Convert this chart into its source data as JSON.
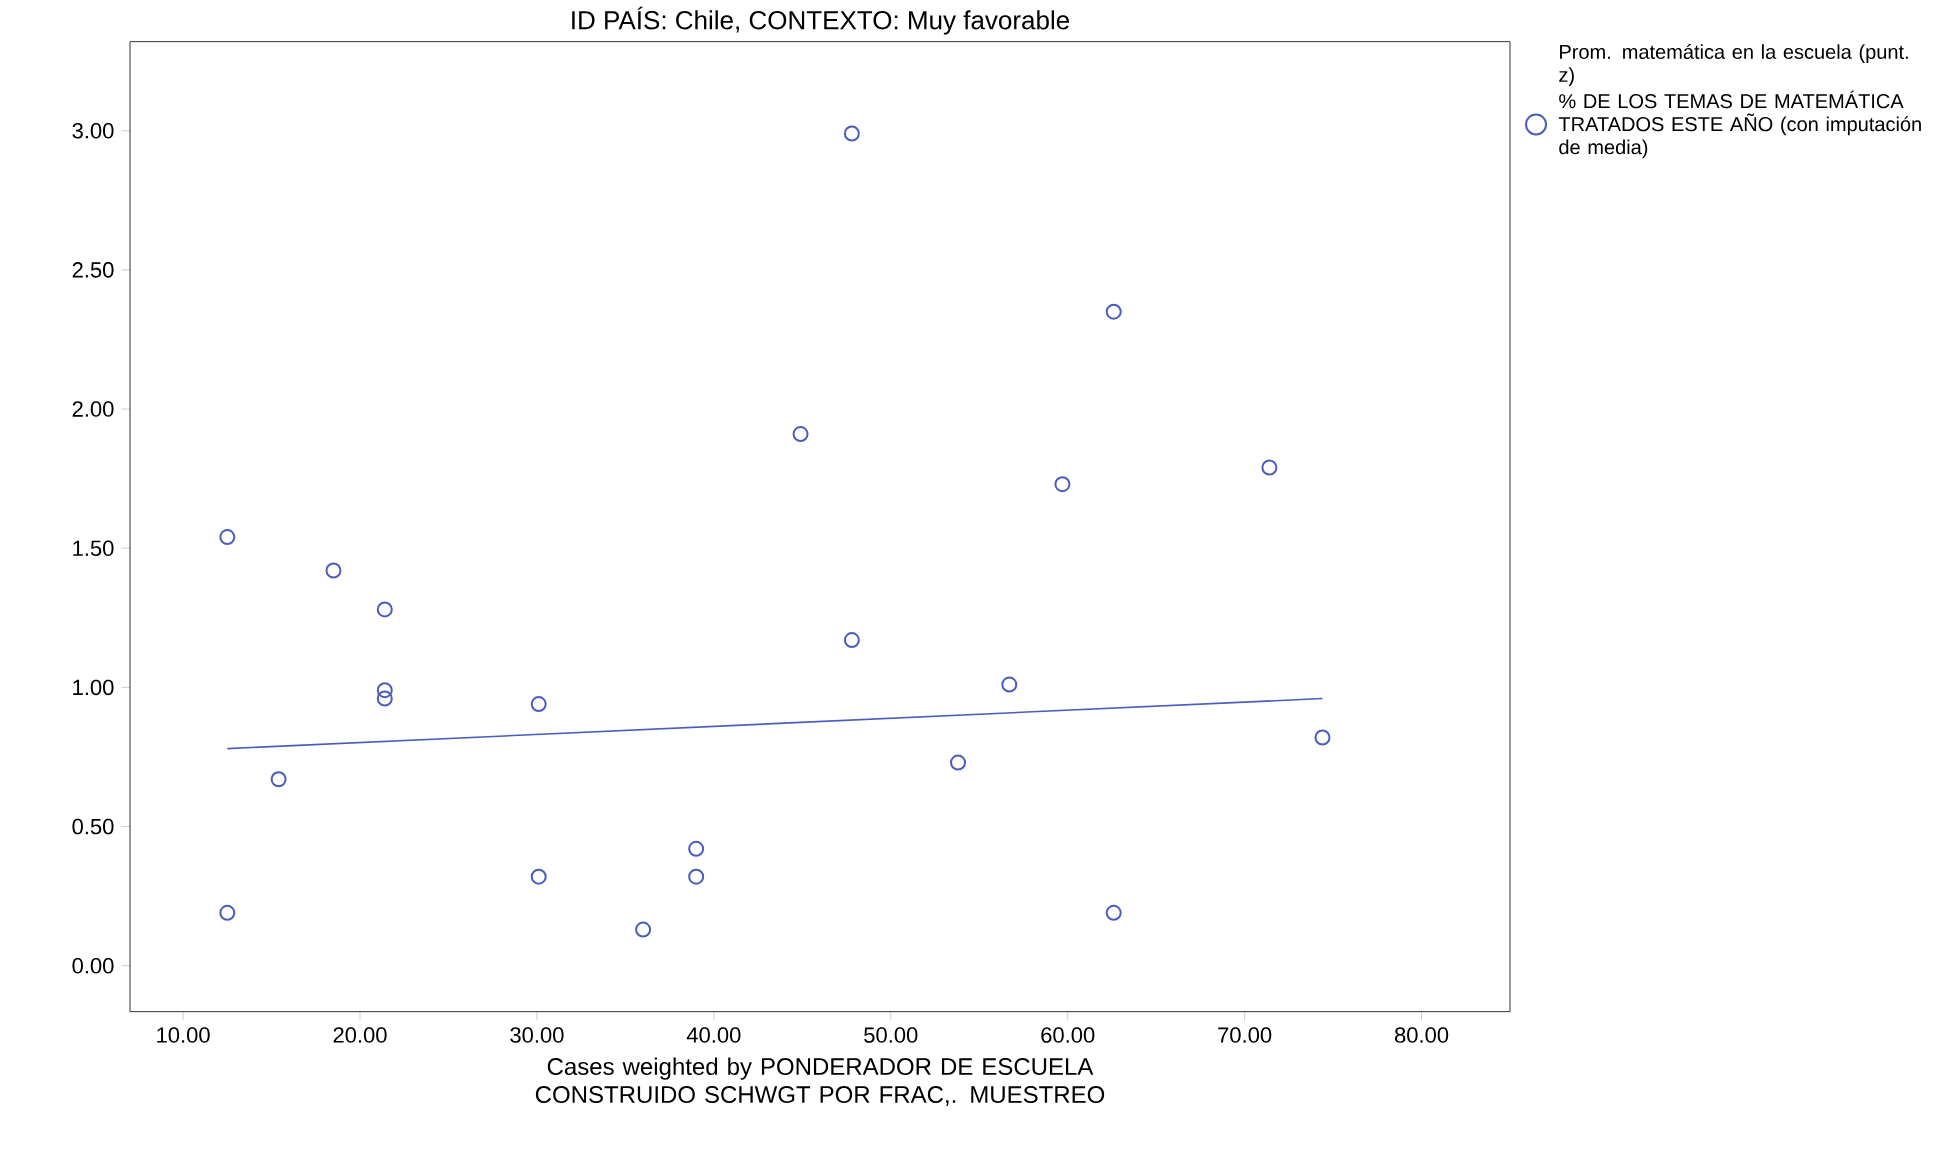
{
  "chart_data": {
    "type": "scatter",
    "title": "ID PAÍS: Chile, CONTEXTO: Muy favorable",
    "legend_title": "Prom. matemática en la escuela (punt. z)",
    "annotations": [
      "Cases weighted by PONDERADOR DE ESCUELA CONSTRUIDO SCHWGT POR FRAC,. MUESTREO"
    ],
    "xlim": [
      7,
      85
    ],
    "ylim": [
      -0.165,
      3.32
    ],
    "xticks": [
      {
        "value": 10,
        "label": "10.00"
      },
      {
        "value": 20,
        "label": "20.00"
      },
      {
        "value": 30,
        "label": "30.00"
      },
      {
        "value": 40,
        "label": "40.00"
      },
      {
        "value": 50,
        "label": "50.00"
      },
      {
        "value": 60,
        "label": "60.00"
      },
      {
        "value": 70,
        "label": "70.00"
      },
      {
        "value": 80,
        "label": "80.00"
      }
    ],
    "yticks": [
      {
        "value": 0,
        "label": "0.00"
      },
      {
        "value": 0.5,
        "label": "0.50"
      },
      {
        "value": 1,
        "label": "1.00"
      },
      {
        "value": 1.5,
        "label": "1.50"
      },
      {
        "value": 2,
        "label": "2.00"
      },
      {
        "value": 2.5,
        "label": "2.50"
      },
      {
        "value": 3,
        "label": "3.00"
      }
    ],
    "legend": "right",
    "marker": "circle",
    "series": [
      {
        "name": "% DE LOS TEMAS DE MATEMÁTICA TRATADOS ESTE AÑO (con imputación de media)",
        "color": "#4a5cc0",
        "x": [
          12.5,
          18.5,
          21.4,
          21.4,
          21.4,
          12.5,
          15.4,
          30.1,
          30.1,
          36.0,
          39.0,
          39.0,
          44.9,
          47.8,
          47.8,
          53.8,
          56.7,
          59.7,
          62.6,
          62.6,
          71.4,
          74.4
        ],
        "values": [
          1.54,
          1.42,
          1.28,
          0.99,
          0.96,
          0.19,
          0.67,
          0.94,
          0.32,
          0.13,
          0.42,
          0.32,
          1.91,
          2.99,
          1.17,
          0.73,
          1.01,
          1.73,
          2.35,
          0.19,
          1.79,
          0.82
        ]
      },
      {
        "type": "line",
        "marker": "none",
        "color": "#4a5cc0",
        "x": [
          12.5,
          74.4
        ],
        "values": [
          0.78,
          0.96
        ]
      }
    ]
  }
}
